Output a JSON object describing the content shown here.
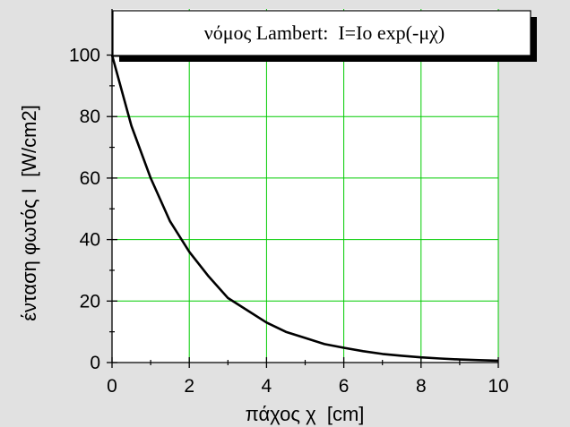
{
  "chart_data": {
    "type": "line",
    "title": "νόμος Lambert:  I=Io exp(-μχ)",
    "xlabel": "πάχος χ  [cm]",
    "ylabel": "ένταση φωτός I  [W/cm2]",
    "xlim": [
      0,
      10
    ],
    "ylim": [
      0,
      115
    ],
    "x_ticks": [
      0,
      2,
      4,
      6,
      8,
      10
    ],
    "y_ticks": [
      0,
      20,
      40,
      60,
      80,
      100
    ],
    "grid": true,
    "colors": {
      "background": "#e1e1e1",
      "plot": "#ffffff",
      "grid": "#00cc00",
      "line": "#000000"
    },
    "series": [
      {
        "x": [
          0,
          0.5,
          1,
          1.5,
          2,
          2.5,
          3,
          3.5,
          4,
          4.5,
          5,
          5.5,
          6,
          6.5,
          7,
          7.5,
          8,
          8.5,
          9,
          9.5,
          10
        ],
        "y": [
          100,
          77,
          60,
          46,
          36,
          28,
          21,
          17,
          13,
          10,
          8,
          6,
          4.8,
          3.7,
          2.8,
          2.2,
          1.7,
          1.3,
          1,
          0.8,
          0.6
        ]
      }
    ]
  }
}
